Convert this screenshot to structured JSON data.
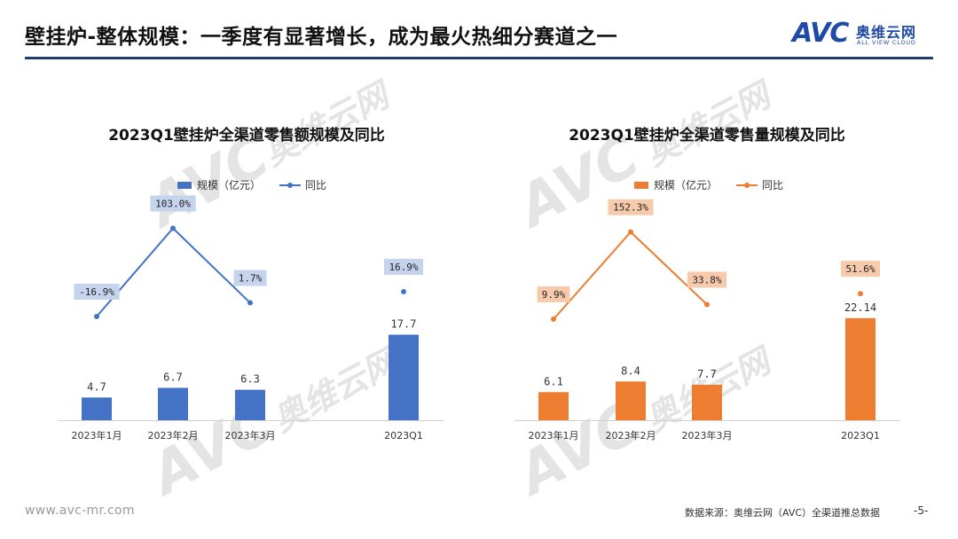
{
  "header": {
    "title": "壁挂炉-整体规模：一季度有显著增长，成为最火热细分赛道之一"
  },
  "logo": {
    "avc": "AVC",
    "cn": "奥维云网",
    "en": "ALL VIEW CLOUD"
  },
  "footer": {
    "website": "www.avc-mr.com",
    "source": "数据来源：奥维云网（AVC）全渠道推总数据",
    "page": "-5-"
  },
  "colors": {
    "header_rule": "#1f3d73",
    "left_bar": "#4472c4",
    "left_line": "#4472c4",
    "left_label_bg": "#c6d3ec",
    "right_bar": "#ed7d31",
    "right_line": "#ed7d31",
    "right_label_bg": "#f7caac"
  },
  "chart_data": [
    {
      "type": "bar",
      "title": "2023Q1壁挂炉全渠道零售额规模及同比",
      "categories": [
        "2023年1月",
        "2023年2月",
        "2023年3月",
        "2023Q1"
      ],
      "series": [
        {
          "name": "规模（亿元）",
          "type": "bar",
          "values": [
            4.7,
            6.7,
            6.3,
            17.7
          ],
          "labels": [
            "4.7",
            "6.7",
            "6.3",
            "17.7"
          ]
        },
        {
          "name": "同比",
          "type": "line",
          "values": [
            -16.9,
            103.0,
            1.7,
            16.9
          ],
          "labels": [
            "-16.9%",
            "103.0%",
            "1.7%",
            "16.9%"
          ],
          "line_segment_categories": [
            0,
            1,
            2
          ]
        }
      ],
      "legend": "top-center",
      "grid": false
    },
    {
      "type": "bar",
      "title": "2023Q1壁挂炉全渠道零售量规模及同比",
      "categories": [
        "2023年1月",
        "2023年2月",
        "2023年3月",
        "2023Q1"
      ],
      "series": [
        {
          "name": "规模（亿元）",
          "type": "bar",
          "values": [
            6.1,
            8.4,
            7.7,
            22.14
          ],
          "labels": [
            "6.1",
            "8.4",
            "7.7",
            "22.14"
          ]
        },
        {
          "name": "同比",
          "type": "line",
          "values": [
            9.9,
            152.3,
            33.8,
            51.6
          ],
          "labels": [
            "9.9%",
            "152.3%",
            "33.8%",
            "51.6%"
          ],
          "line_segment_categories": [
            0,
            1,
            2
          ]
        }
      ],
      "legend": "top-center",
      "grid": false
    }
  ]
}
